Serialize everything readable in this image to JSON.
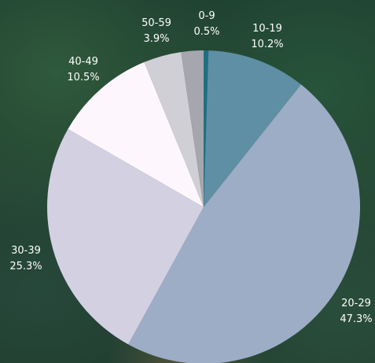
{
  "chart_data": {
    "type": "pie",
    "title": "",
    "slices": [
      {
        "label": "0-9",
        "value": 0.5,
        "display": "0.5%",
        "color": "#1f6f84"
      },
      {
        "label": "10-19",
        "value": 10.2,
        "display": "10.2%",
        "color": "#5e8fa4"
      },
      {
        "label": "20-29",
        "value": 47.3,
        "display": "47.3%",
        "color": "#9dadc6"
      },
      {
        "label": "30-39",
        "value": 25.3,
        "display": "25.3%",
        "color": "#d3d0e2"
      },
      {
        "label": "40-49",
        "value": 10.5,
        "display": "10.5%",
        "color": "#fdf7fd"
      },
      {
        "label": "50-59",
        "value": 3.9,
        "display": "3.9%",
        "color": "#d0cfd6"
      },
      {
        "label": "",
        "value": 2.3,
        "display": "",
        "color": "#a6a6ae"
      }
    ],
    "legend": "none",
    "start_angle": "12 o'clock, clockwise"
  }
}
